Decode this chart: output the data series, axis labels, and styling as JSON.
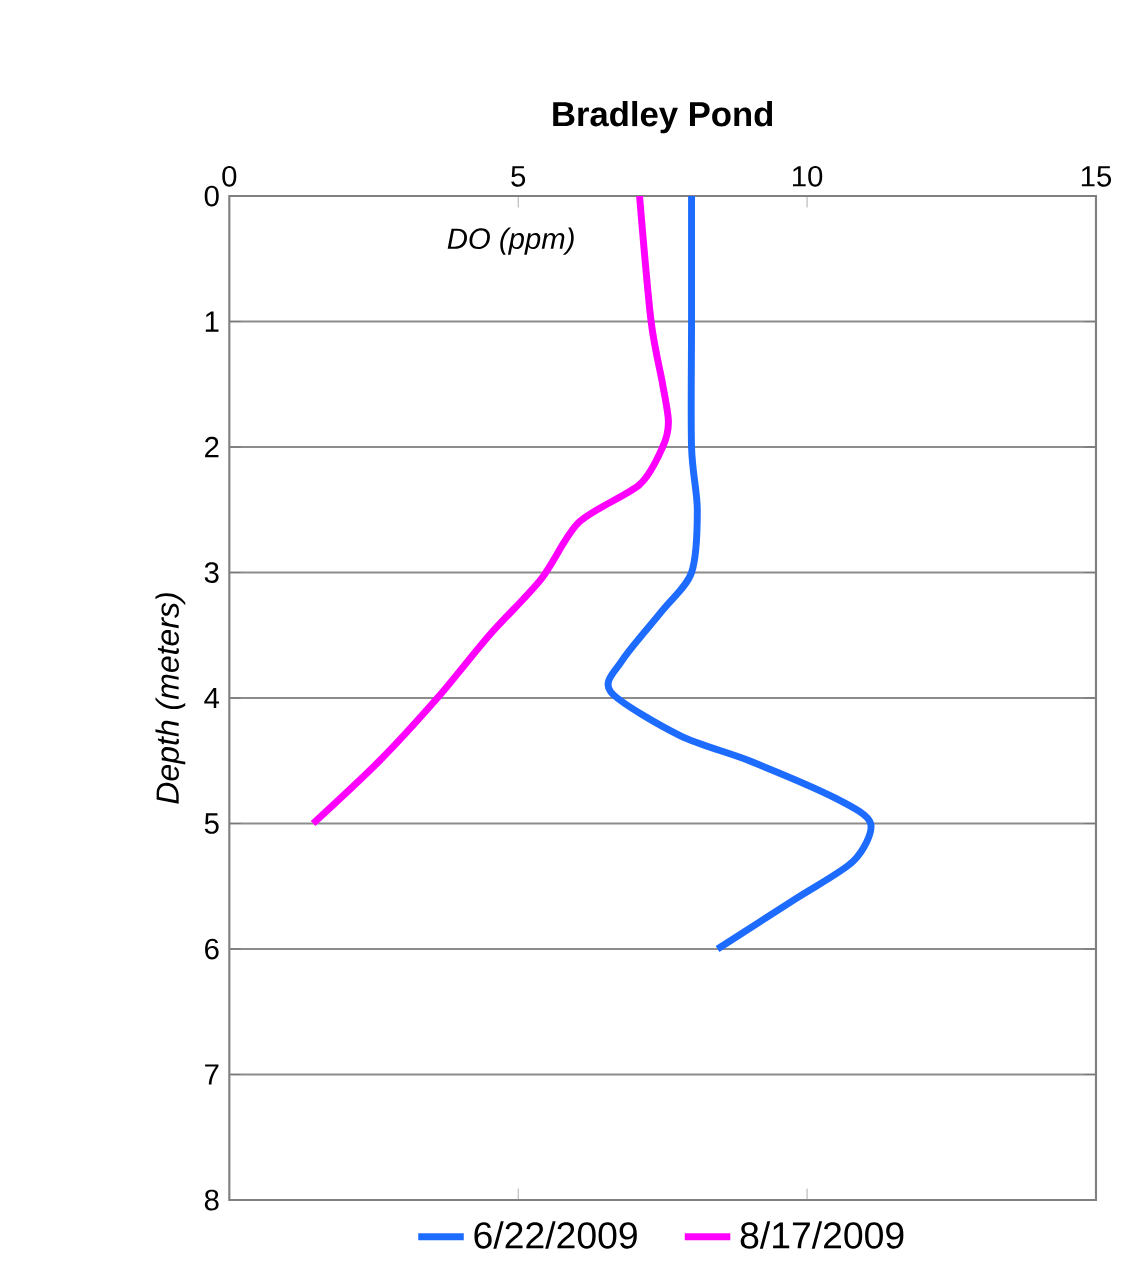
{
  "chart_data": {
    "type": "line",
    "title": "Bradley Pond",
    "ylabel": "Depth (meters)",
    "annotations": [
      "DO (ppm)"
    ],
    "xlim": [
      0,
      15
    ],
    "xticks": [
      0,
      5,
      10,
      15
    ],
    "ylim": [
      8,
      0
    ],
    "yticks": [
      0,
      1,
      2,
      3,
      4,
      5,
      6,
      7,
      8
    ],
    "grid": "y",
    "legend": "bottom",
    "line_style": "solid",
    "marker": "none",
    "series": [
      {
        "name": "6/22/2009",
        "color": "#1e6cff",
        "x": [
          8.0,
          8.0,
          8.0,
          8.1,
          8.0,
          7.5,
          6.8,
          6.6,
          7.8,
          9.0,
          10.5,
          11.1,
          10.8,
          9.8,
          8.45
        ],
        "values": [
          0,
          1,
          2,
          2.5,
          3,
          3.3,
          3.7,
          3.95,
          4.3,
          4.5,
          4.8,
          5.0,
          5.3,
          5.6,
          6.0
        ]
      },
      {
        "name": "8/17/2009",
        "color": "#ff00ff",
        "x": [
          7.1,
          7.3,
          7.5,
          7.6,
          7.5,
          7.1,
          6.05,
          5.4,
          4.5,
          3.6,
          2.6,
          1.45
        ],
        "values": [
          0,
          1,
          1.5,
          1.8,
          2,
          2.3,
          2.6,
          3.05,
          3.5,
          4.0,
          4.5,
          5.0
        ]
      }
    ]
  }
}
